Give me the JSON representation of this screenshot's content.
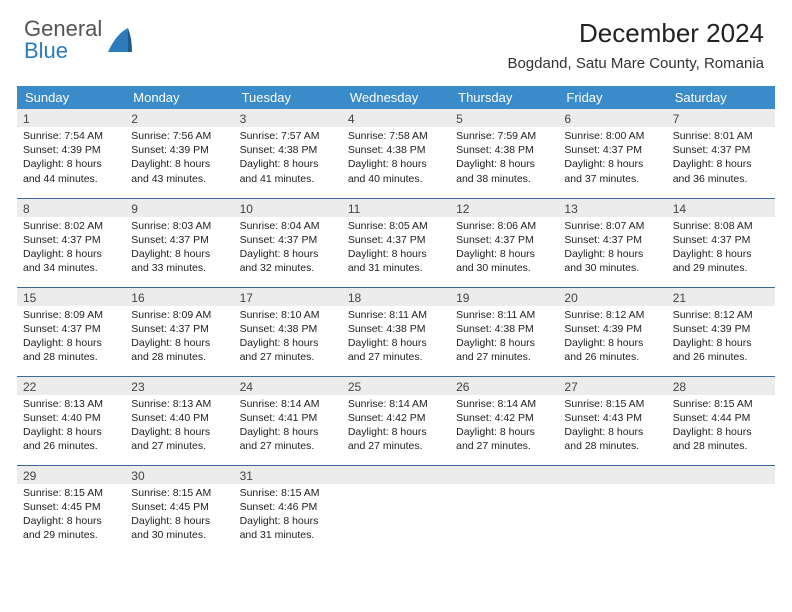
{
  "logo": {
    "general": "General",
    "blue": "Blue"
  },
  "title": "December 2024",
  "location": "Bogdand, Satu Mare County, Romania",
  "colors": {
    "header_bg": "#3a8bc9",
    "header_fg": "#ffffff",
    "daynum_bg": "#ececec",
    "border": "#3a6b9a",
    "logo_gray": "#555555",
    "logo_blue": "#2b7bbd"
  },
  "weekdays": [
    "Sunday",
    "Monday",
    "Tuesday",
    "Wednesday",
    "Thursday",
    "Friday",
    "Saturday"
  ],
  "weeks": [
    [
      {
        "n": "1",
        "sr": "7:54 AM",
        "ss": "4:39 PM",
        "dl": "8 hours and 44 minutes."
      },
      {
        "n": "2",
        "sr": "7:56 AM",
        "ss": "4:39 PM",
        "dl": "8 hours and 43 minutes."
      },
      {
        "n": "3",
        "sr": "7:57 AM",
        "ss": "4:38 PM",
        "dl": "8 hours and 41 minutes."
      },
      {
        "n": "4",
        "sr": "7:58 AM",
        "ss": "4:38 PM",
        "dl": "8 hours and 40 minutes."
      },
      {
        "n": "5",
        "sr": "7:59 AM",
        "ss": "4:38 PM",
        "dl": "8 hours and 38 minutes."
      },
      {
        "n": "6",
        "sr": "8:00 AM",
        "ss": "4:37 PM",
        "dl": "8 hours and 37 minutes."
      },
      {
        "n": "7",
        "sr": "8:01 AM",
        "ss": "4:37 PM",
        "dl": "8 hours and 36 minutes."
      }
    ],
    [
      {
        "n": "8",
        "sr": "8:02 AM",
        "ss": "4:37 PM",
        "dl": "8 hours and 34 minutes."
      },
      {
        "n": "9",
        "sr": "8:03 AM",
        "ss": "4:37 PM",
        "dl": "8 hours and 33 minutes."
      },
      {
        "n": "10",
        "sr": "8:04 AM",
        "ss": "4:37 PM",
        "dl": "8 hours and 32 minutes."
      },
      {
        "n": "11",
        "sr": "8:05 AM",
        "ss": "4:37 PM",
        "dl": "8 hours and 31 minutes."
      },
      {
        "n": "12",
        "sr": "8:06 AM",
        "ss": "4:37 PM",
        "dl": "8 hours and 30 minutes."
      },
      {
        "n": "13",
        "sr": "8:07 AM",
        "ss": "4:37 PM",
        "dl": "8 hours and 30 minutes."
      },
      {
        "n": "14",
        "sr": "8:08 AM",
        "ss": "4:37 PM",
        "dl": "8 hours and 29 minutes."
      }
    ],
    [
      {
        "n": "15",
        "sr": "8:09 AM",
        "ss": "4:37 PM",
        "dl": "8 hours and 28 minutes."
      },
      {
        "n": "16",
        "sr": "8:09 AM",
        "ss": "4:37 PM",
        "dl": "8 hours and 28 minutes."
      },
      {
        "n": "17",
        "sr": "8:10 AM",
        "ss": "4:38 PM",
        "dl": "8 hours and 27 minutes."
      },
      {
        "n": "18",
        "sr": "8:11 AM",
        "ss": "4:38 PM",
        "dl": "8 hours and 27 minutes."
      },
      {
        "n": "19",
        "sr": "8:11 AM",
        "ss": "4:38 PM",
        "dl": "8 hours and 27 minutes."
      },
      {
        "n": "20",
        "sr": "8:12 AM",
        "ss": "4:39 PM",
        "dl": "8 hours and 26 minutes."
      },
      {
        "n": "21",
        "sr": "8:12 AM",
        "ss": "4:39 PM",
        "dl": "8 hours and 26 minutes."
      }
    ],
    [
      {
        "n": "22",
        "sr": "8:13 AM",
        "ss": "4:40 PM",
        "dl": "8 hours and 26 minutes."
      },
      {
        "n": "23",
        "sr": "8:13 AM",
        "ss": "4:40 PM",
        "dl": "8 hours and 27 minutes."
      },
      {
        "n": "24",
        "sr": "8:14 AM",
        "ss": "4:41 PM",
        "dl": "8 hours and 27 minutes."
      },
      {
        "n": "25",
        "sr": "8:14 AM",
        "ss": "4:42 PM",
        "dl": "8 hours and 27 minutes."
      },
      {
        "n": "26",
        "sr": "8:14 AM",
        "ss": "4:42 PM",
        "dl": "8 hours and 27 minutes."
      },
      {
        "n": "27",
        "sr": "8:15 AM",
        "ss": "4:43 PM",
        "dl": "8 hours and 28 minutes."
      },
      {
        "n": "28",
        "sr": "8:15 AM",
        "ss": "4:44 PM",
        "dl": "8 hours and 28 minutes."
      }
    ],
    [
      {
        "n": "29",
        "sr": "8:15 AM",
        "ss": "4:45 PM",
        "dl": "8 hours and 29 minutes."
      },
      {
        "n": "30",
        "sr": "8:15 AM",
        "ss": "4:45 PM",
        "dl": "8 hours and 30 minutes."
      },
      {
        "n": "31",
        "sr": "8:15 AM",
        "ss": "4:46 PM",
        "dl": "8 hours and 31 minutes."
      },
      {
        "empty": true
      },
      {
        "empty": true
      },
      {
        "empty": true
      },
      {
        "empty": true
      }
    ]
  ],
  "labels": {
    "sunrise": "Sunrise: ",
    "sunset": "Sunset: ",
    "daylight": "Daylight: "
  }
}
